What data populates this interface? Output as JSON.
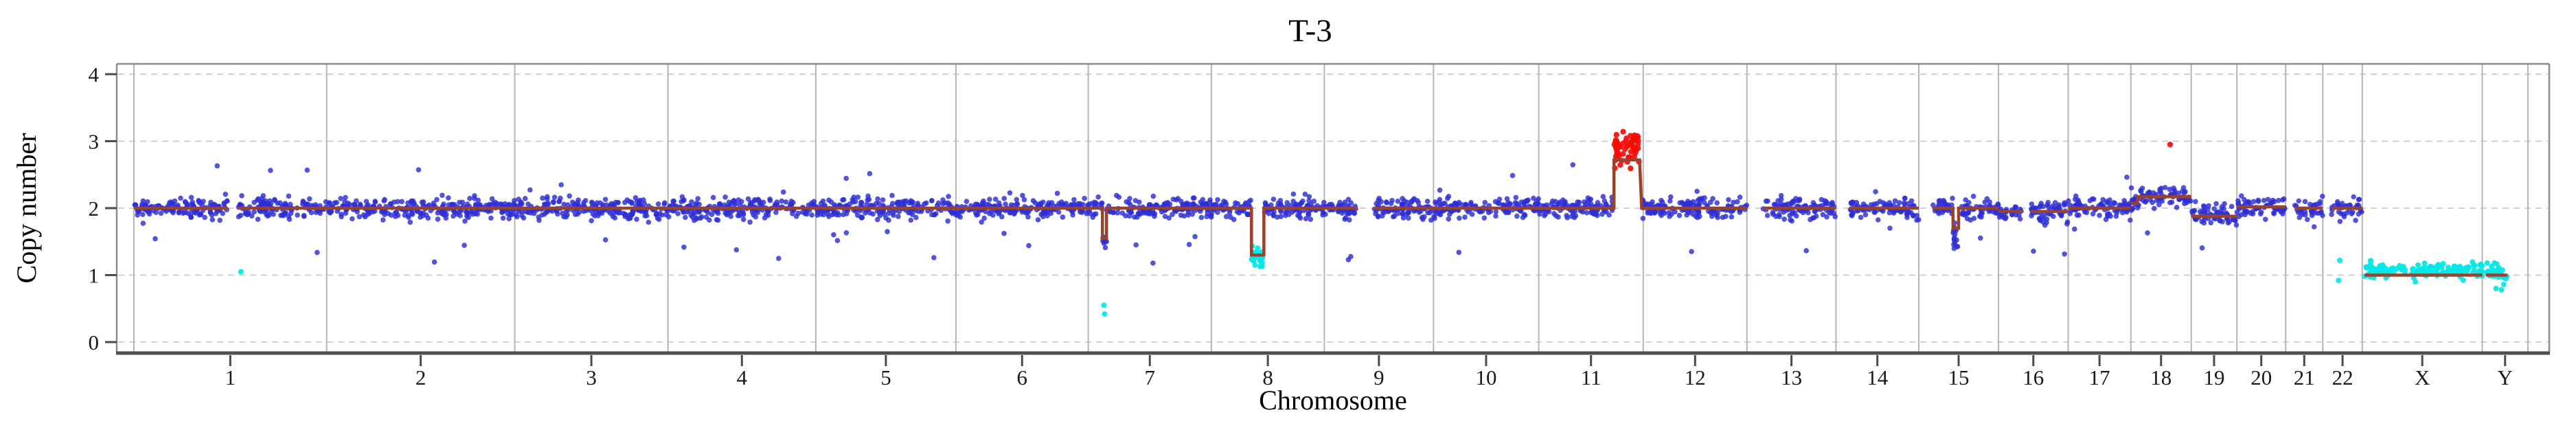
{
  "title": "T-3",
  "xlabel": "Chromosome",
  "ylabel": "Copy number",
  "colors": {
    "background": "#ffffff",
    "point_normal": "#2d2dd4",
    "point_gain": "#fb0a06",
    "point_loss": "#00e7e7",
    "segment_line": "#9a422b",
    "gridline": "#cbcbcb",
    "chromosome_separator": "#b5b5b5",
    "frame": "#8c8c8c",
    "bottom_axis": "#4f4f4f",
    "text": "#000000"
  },
  "chart_data": {
    "type": "scatter",
    "title": "T-3",
    "xlabel": "Chromosome",
    "ylabel": "Copy number",
    "ylim": [
      0,
      4
    ],
    "yticks": [
      "0",
      "1",
      "2",
      "3",
      "4"
    ],
    "grid": true,
    "x_categories": [
      "1",
      "2",
      "3",
      "4",
      "5",
      "6",
      "7",
      "8",
      "9",
      "10",
      "11",
      "12",
      "13",
      "14",
      "15",
      "16",
      "17",
      "18",
      "19",
      "20",
      "21",
      "22",
      "X",
      "Y"
    ],
    "legend": "none",
    "point_classes": {
      "normal": "copy-neutral bins (blue)",
      "gain": "copy-gain bins (red)",
      "loss": "copy-loss bins (cyan)"
    },
    "baseline_copy_number": 2,
    "point_noise_sd": 0.075,
    "points_per_pixel": 0.95,
    "outlier_low_prob": 0.013,
    "outlier_high_prob": 0.004,
    "chromosomes": [
      {
        "name": "1",
        "mb": 249,
        "segs": [
          [
            0,
            0.485,
            2.0
          ],
          [
            0.54,
            1,
            2.0
          ]
        ],
        "gaps": [
          [
            0.485,
            0.54
          ]
        ],
        "points": [
          [
            0.555,
            1.05,
            "loss"
          ]
        ]
      },
      {
        "name": "2",
        "mb": 243,
        "segs": [
          [
            0,
            1,
            2.0
          ]
        ]
      },
      {
        "name": "3",
        "mb": 198,
        "segs": [
          [
            0,
            1,
            2.0
          ]
        ]
      },
      {
        "name": "4",
        "mb": 191,
        "segs": [
          [
            0,
            1,
            2.0
          ]
        ]
      },
      {
        "name": "5",
        "mb": 181,
        "segs": [
          [
            0,
            1,
            2.0
          ]
        ]
      },
      {
        "name": "6",
        "mb": 171,
        "segs": [
          [
            0,
            1,
            2.0
          ]
        ]
      },
      {
        "name": "7",
        "mb": 159,
        "segs": [
          [
            0,
            0.115,
            2.0
          ],
          [
            0.115,
            0.148,
            1.55
          ],
          [
            0.148,
            1,
            2.0
          ]
        ],
        "points": [
          [
            0.127,
            0.55,
            "loss"
          ],
          [
            0.133,
            0.42,
            "loss"
          ]
        ]
      },
      {
        "name": "8",
        "mb": 146,
        "segs": [
          [
            0,
            0.355,
            2.0
          ],
          [
            0.355,
            0.465,
            1.3
          ],
          [
            0.465,
            1,
            2.0
          ]
        ],
        "clusters": [
          {
            "range": [
              0.355,
              0.465
            ],
            "mean": 1.28,
            "sd": 0.05,
            "color": "loss",
            "extra": 16,
            "clip": [
              1.13,
              1.45
            ]
          }
        ]
      },
      {
        "name": "9",
        "mb": 141,
        "segs": [
          [
            0,
            0.3,
            2.0
          ],
          [
            0.46,
            1,
            2.0
          ]
        ],
        "gaps": [
          [
            0.3,
            0.46
          ]
        ],
        "points": [
          [
            0.22,
            1.23,
            "normal"
          ]
        ]
      },
      {
        "name": "10",
        "mb": 136,
        "segs": [
          [
            0,
            1,
            2.0
          ]
        ]
      },
      {
        "name": "11",
        "mb": 135,
        "segs": [
          [
            0,
            0.72,
            2.0
          ],
          [
            0.72,
            0.965,
            2.72
          ],
          [
            0.985,
            1,
            2.0
          ]
        ],
        "clusters": [
          {
            "range": [
              0.72,
              0.965
            ],
            "mean": 2.87,
            "sd": 0.13,
            "color": "gain",
            "extra": 24,
            "clip": [
              2.5,
              3.14
            ]
          }
        ]
      },
      {
        "name": "12",
        "mb": 134,
        "segs": [
          [
            0,
            1,
            2.0
          ]
        ]
      },
      {
        "name": "13",
        "mb": 115,
        "segs": [
          [
            0.18,
            1,
            2.0
          ]
        ],
        "gaps": [
          [
            0,
            0.18
          ]
        ]
      },
      {
        "name": "14",
        "mb": 107,
        "segs": [
          [
            0.16,
            1,
            2.0
          ]
        ],
        "gaps": [
          [
            0,
            0.16
          ]
        ]
      },
      {
        "name": "15",
        "mb": 103,
        "segs": [
          [
            0.17,
            0.43,
            2.0
          ],
          [
            0.43,
            0.5,
            1.7
          ],
          [
            0.5,
            1,
            2.0
          ]
        ],
        "gaps": [
          [
            0,
            0.17
          ]
        ],
        "clusters": [
          {
            "range": [
              0.43,
              0.5
            ],
            "mean": 1.55,
            "sd": 0.1,
            "color": "normal",
            "extra": 8,
            "clip": [
              1.3,
              1.78
            ]
          }
        ]
      },
      {
        "name": "16",
        "mb": 90,
        "segs": [
          [
            0,
            0.35,
            1.95
          ],
          [
            0.46,
            1,
            1.95
          ]
        ],
        "gaps": [
          [
            0.35,
            0.46
          ]
        ]
      },
      {
        "name": "17",
        "mb": 81,
        "segs": [
          [
            0,
            1,
            2.0
          ]
        ]
      },
      {
        "name": "18",
        "mb": 78,
        "segs": [
          [
            0,
            0.1,
            2.07
          ],
          [
            0.12,
            1,
            2.17
          ]
        ],
        "points": [
          [
            0.65,
            2.95,
            "gain"
          ]
        ]
      },
      {
        "name": "19",
        "mb": 59,
        "segs": [
          [
            0,
            1,
            1.88
          ]
        ],
        "sd": 0.105
      },
      {
        "name": "20",
        "mb": 63,
        "segs": [
          [
            0,
            1,
            2.02
          ]
        ]
      },
      {
        "name": "21",
        "mb": 48,
        "segs": [
          [
            0.25,
            1,
            2.0
          ]
        ],
        "gaps": [
          [
            0,
            0.25
          ]
        ]
      },
      {
        "name": "22",
        "mb": 51,
        "segs": [
          [
            0.22,
            1,
            2.0
          ]
        ],
        "gaps": [
          [
            0,
            0.22
          ]
        ],
        "points": [
          [
            0.4,
            0.92,
            "loss"
          ],
          [
            0.43,
            1.22,
            "loss"
          ]
        ]
      },
      {
        "name": "X",
        "mb": 155,
        "segs": [
          [
            0.02,
            1,
            1.0
          ]
        ],
        "gaps": [
          [
            0,
            0.02
          ],
          [
            0.37,
            0.405
          ]
        ],
        "clusters": [
          {
            "range": [
              0,
              1
            ],
            "mean": 1.07,
            "sd": 0.055,
            "color": "loss",
            "extra": 0,
            "clip": [
              0.9,
              1.28
            ]
          }
        ]
      },
      {
        "name": "Y",
        "mb": 59,
        "segs": [
          [
            0.08,
            0.55,
            1.0
          ]
        ],
        "gaps": [
          [
            0,
            0.08
          ],
          [
            0.55,
            1
          ]
        ],
        "clusters": [
          {
            "range": [
              0,
              1
            ],
            "mean": 1.03,
            "sd": 0.06,
            "color": "loss",
            "extra": 0,
            "clip": [
              0.88,
              1.18
            ]
          }
        ],
        "points": [
          [
            0.3,
            0.8,
            "loss"
          ],
          [
            0.42,
            0.78,
            "loss"
          ],
          [
            0.47,
            0.86,
            "loss"
          ]
        ]
      }
    ]
  }
}
